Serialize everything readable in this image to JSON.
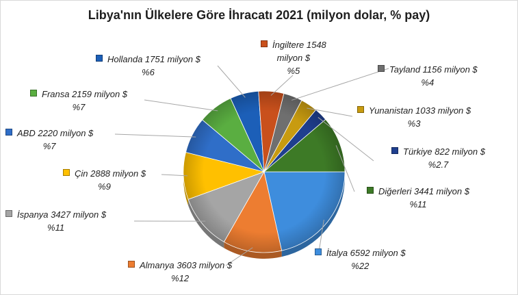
{
  "chart_data": {
    "type": "pie",
    "title": "Libya'nın Ülkelere Göre İhracatı 2021 (milyon dolar, % pay)",
    "slices": [
      {
        "name": "İtalya",
        "value": 6592,
        "line1": "İtalya 6592 milyon $",
        "line2": "%22",
        "color": "#3e8ddd"
      },
      {
        "name": "Almanya",
        "value": 3603,
        "line1": "Almanya 3603 milyon $",
        "line2": "%12",
        "color": "#ed7d31"
      },
      {
        "name": "İspanya",
        "value": 3427,
        "line1": "İspanya 3427 milyon $",
        "line2": "%11",
        "color": "#a5a5a5"
      },
      {
        "name": "Çin",
        "value": 2888,
        "line1": "Çin 2888 milyon $",
        "line2": "%9",
        "color": "#ffc000"
      },
      {
        "name": "ABD",
        "value": 2220,
        "line1": "ABD 2220 milyon $",
        "line2": "%7",
        "color": "#2f6ec8"
      },
      {
        "name": "Fransa",
        "value": 2159,
        "line1": "Fransa 2159 milyon $",
        "line2": "%7",
        "color": "#5aae41"
      },
      {
        "name": "Hollanda",
        "value": 1751,
        "line1": "Hollanda 1751 milyon $",
        "line2": "%6",
        "color": "#1c5fb8"
      },
      {
        "name": "İngiltere",
        "value": 1548,
        "line1": "İngiltere 1548",
        "line2": "milyon $",
        "line3": "%5",
        "color": "#c9501c"
      },
      {
        "name": "Tayland",
        "value": 1156,
        "line1": "Tayland 1156 milyon $",
        "line2": "%4",
        "color": "#6f6f6f"
      },
      {
        "name": "Yunanistan",
        "value": 1033,
        "line1": "Yunanistan 1033 milyon $",
        "line2": "%3",
        "color": "#c89b10"
      },
      {
        "name": "Türkiye",
        "value": 822,
        "line1": "Türkiye 822 milyon $",
        "line2": "%2.7",
        "color": "#1f3f8f"
      },
      {
        "name": "Diğerleri",
        "value": 3441,
        "line1": "Diğerleri 3441 milyon $",
        "line2": "%11",
        "color": "#3d7a26"
      }
    ]
  }
}
